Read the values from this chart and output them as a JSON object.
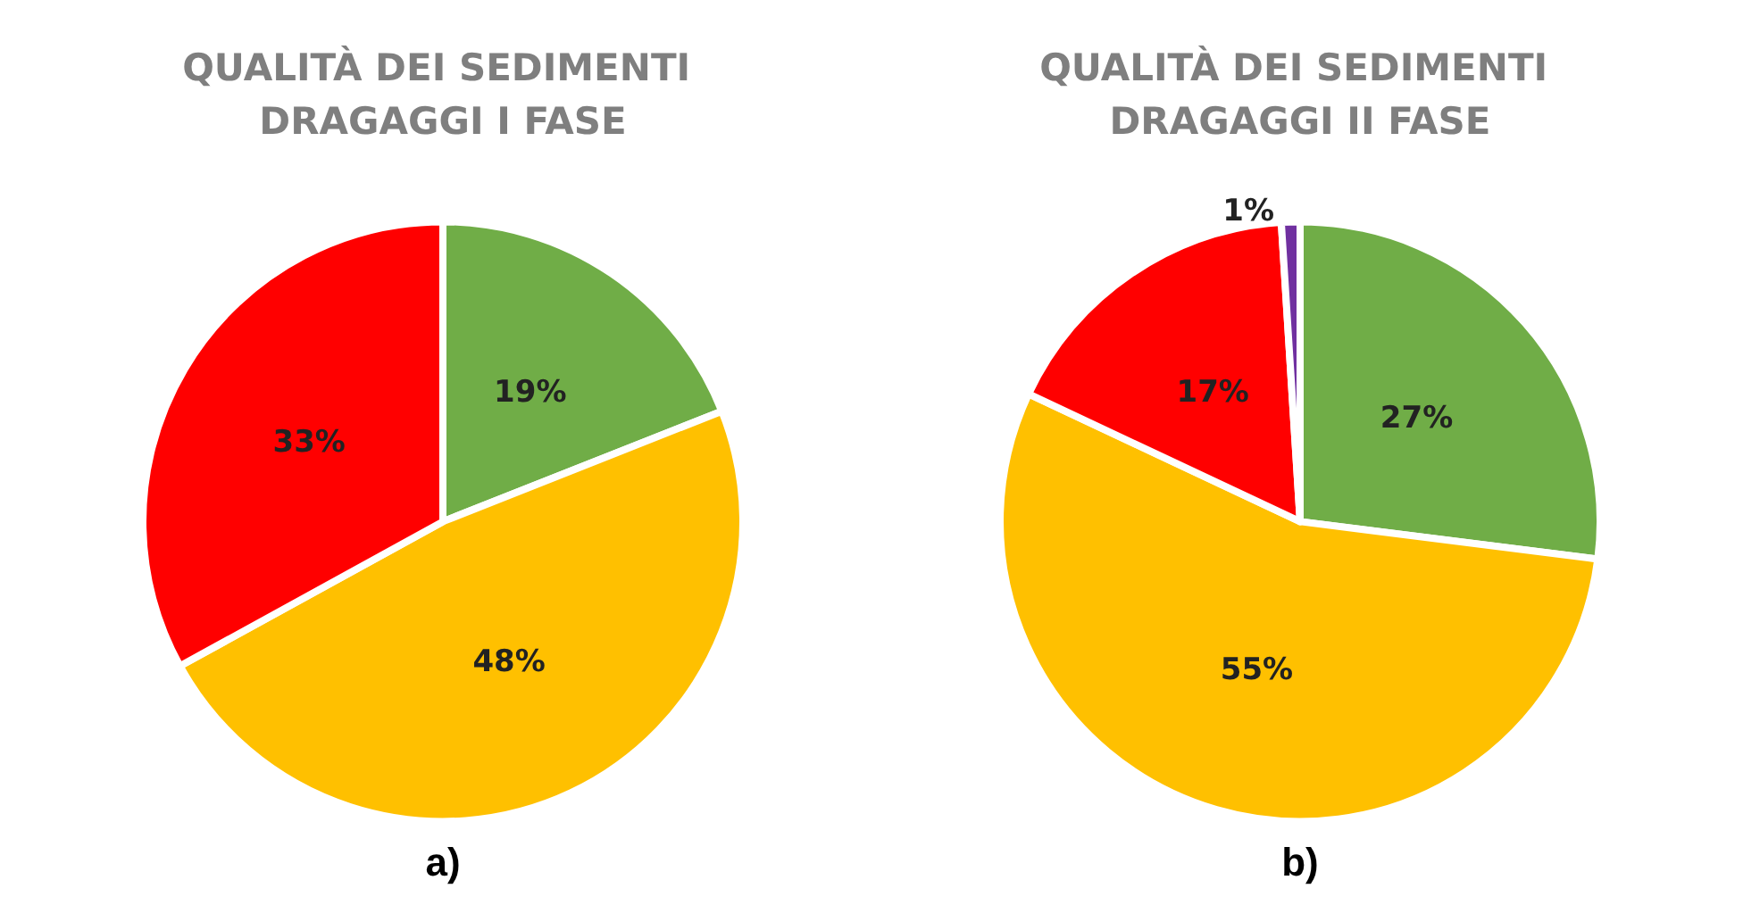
{
  "chart_data": [
    {
      "type": "pie",
      "title": "QUALITÀ DEI SEDIMENTI DRAGAGGI I FASE",
      "categories": [
        null,
        null,
        null
      ],
      "values": [
        19,
        48,
        33
      ],
      "colors": [
        "#70ad47",
        "#ffc000",
        "#ff0000"
      ],
      "value_labels": [
        "19%",
        "48%",
        "33%"
      ],
      "annotations": [
        "a)"
      ]
    },
    {
      "type": "pie",
      "title": "QUALITÀ DEI SEDIMENTI DRAGAGGI II FASE",
      "categories": [
        null,
        null,
        null,
        null
      ],
      "values": [
        27,
        55,
        17,
        1
      ],
      "colors": [
        "#70ad47",
        "#ffc000",
        "#ff0000",
        "#7030a0"
      ],
      "value_labels": [
        "27%",
        "55%",
        "17%",
        "1%"
      ],
      "annotations": [
        "b)"
      ]
    }
  ]
}
